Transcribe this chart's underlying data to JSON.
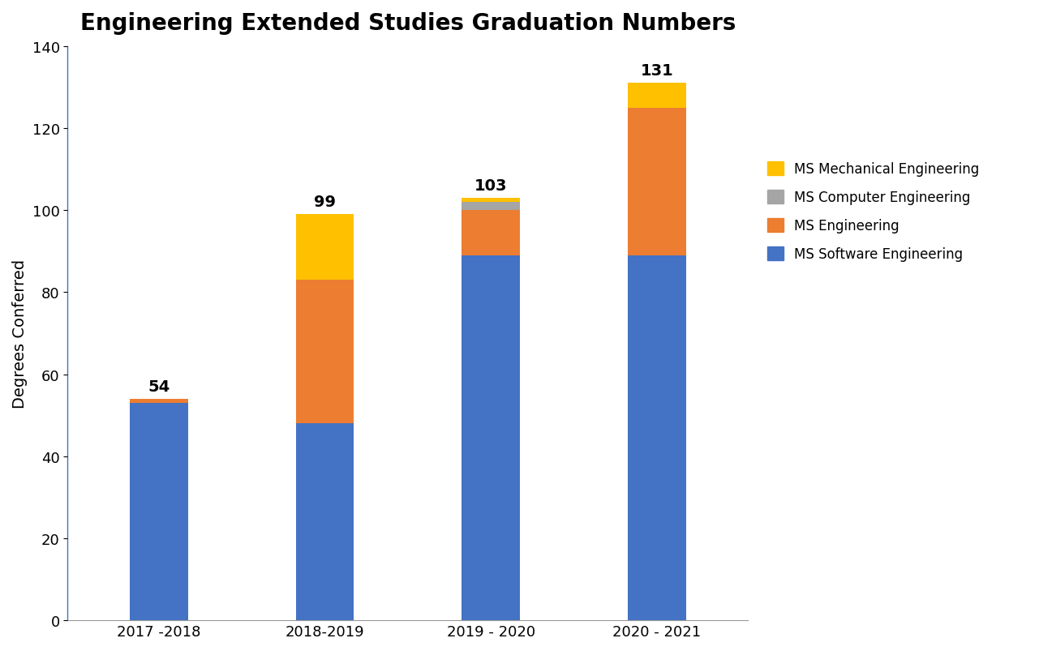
{
  "title": "Engineering Extended Studies Graduation Numbers",
  "ylabel": "Degrees Conferred",
  "categories": [
    "2017 -2018",
    "2018-2019",
    "2019 - 2020",
    "2020 - 2021"
  ],
  "totals": [
    54,
    99,
    103,
    131
  ],
  "series": {
    "MS Software Engineering": {
      "values": [
        53,
        48,
        89,
        89
      ],
      "color": "#4472C4"
    },
    "MS Engineering": {
      "values": [
        1,
        35,
        11,
        36
      ],
      "color": "#ED7D31"
    },
    "MS Computer Engineering": {
      "values": [
        0,
        0,
        2,
        0
      ],
      "color": "#A5A5A5"
    },
    "MS Mechanical Engineering": {
      "values": [
        0,
        16,
        1,
        6
      ],
      "color": "#FFC000"
    }
  },
  "legend_order": [
    "MS Mechanical Engineering",
    "MS Computer Engineering",
    "MS Engineering",
    "MS Software Engineering"
  ],
  "ylim": [
    0,
    140
  ],
  "yticks": [
    0,
    20,
    40,
    60,
    80,
    100,
    120,
    140
  ],
  "background_color": "#FFFFFF",
  "title_fontsize": 20,
  "label_fontsize": 14,
  "tick_fontsize": 13,
  "annotation_fontsize": 14,
  "bar_width": 0.35
}
